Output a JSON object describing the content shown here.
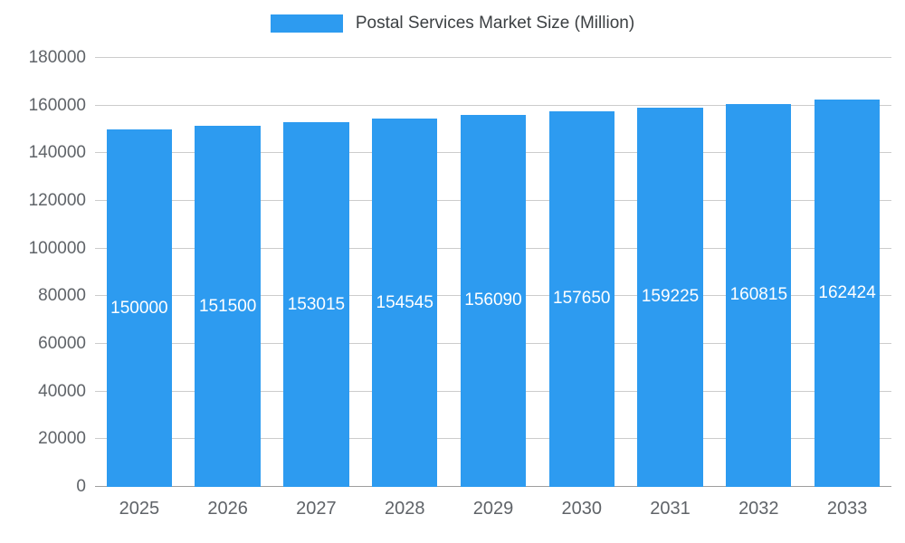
{
  "legend": {
    "label": "Postal Services Market Size (Million)"
  },
  "chart_data": {
    "type": "bar",
    "title": "Postal Services Market Size (Million)",
    "xlabel": "",
    "ylabel": "",
    "categories": [
      "2025",
      "2026",
      "2027",
      "2028",
      "2029",
      "2030",
      "2031",
      "2032",
      "2033"
    ],
    "values": [
      150000,
      151500,
      153015,
      154545,
      156090,
      157650,
      159225,
      160815,
      162424
    ],
    "bar_labels": [
      "150000",
      "151500",
      "153015",
      "154545",
      "156090",
      "157650",
      "159225",
      "160815",
      "162424"
    ],
    "ylim": [
      0,
      180000
    ],
    "yticks": [
      0,
      20000,
      40000,
      60000,
      80000,
      100000,
      120000,
      140000,
      160000,
      180000
    ],
    "grid": true,
    "legend_position": "top",
    "bar_color": "#2d9bf0",
    "bar_label_color": "#ffffff",
    "axis_text_color": "#5f6368",
    "gridline_color": "#cccccc"
  }
}
